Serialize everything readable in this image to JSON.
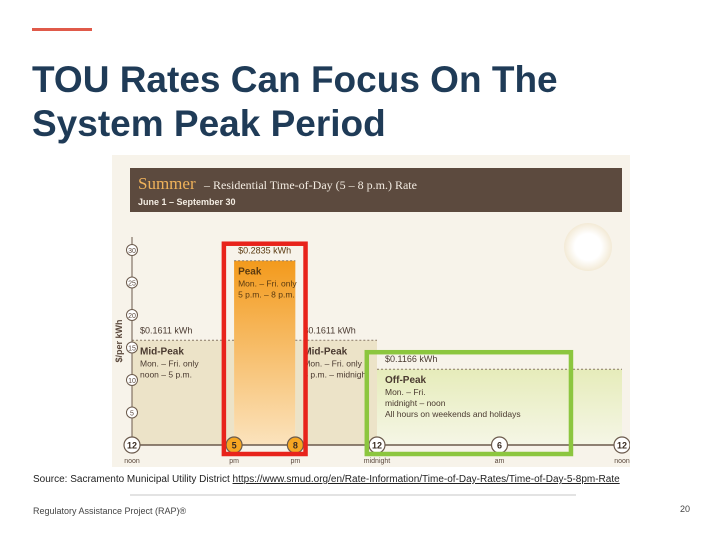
{
  "slide": {
    "title_line1": "TOU Rates Can Focus On The",
    "title_line2": "System Peak Period",
    "source_prefix": "Source: Sacramento Municipal Utility District ",
    "source_url": "https://www.smud.org/en/Rate-Information/Time-of-Day-Rates/Time-of-Day-5-8pm-Rate",
    "footer": "Regulatory Assistance Project (RAP)®",
    "page_number": "20"
  },
  "chart_data": {
    "type": "bar",
    "title": "Summer",
    "subtitle": "– Residential Time-of-Day (5 – 8 p.m.) Rate",
    "date_range": "June 1 – September 30",
    "ylabel": "$/per kWh",
    "y_ticks": [
      5,
      10,
      15,
      20,
      25,
      30
    ],
    "ylim": [
      0,
      32
    ],
    "x_start": 12,
    "x_end": 36,
    "x_ticks": [
      {
        "x": 12,
        "label": "12",
        "sub": "noon"
      },
      {
        "x": 17,
        "label": "5",
        "sub": "pm"
      },
      {
        "x": 20,
        "label": "8",
        "sub": "pm"
      },
      {
        "x": 24,
        "label": "12",
        "sub": "midnight"
      },
      {
        "x": 30,
        "label": "6",
        "sub": "am"
      },
      {
        "x": 36,
        "label": "12",
        "sub": "noon"
      }
    ],
    "segments": [
      {
        "name": "Mid-Peak",
        "start": 12,
        "end": 17,
        "value": 16.11,
        "price": "$0.1611 kWh",
        "line1": "Mon. – Fri. only",
        "line2": "noon – 5 p.m.",
        "line3": "",
        "color": "#ece3c8"
      },
      {
        "name": "Peak",
        "start": 17,
        "end": 20,
        "value": 28.35,
        "price": "$0.2835 kWh",
        "line1": "Mon. – Fri. only",
        "line2": "5 p.m. – 8 p.m.",
        "line3": "",
        "color": "#f5a623"
      },
      {
        "name": "Mid-Peak",
        "start": 20,
        "end": 24,
        "value": 16.11,
        "price": "$0.1611 kWh",
        "line1": "Mon. – Fri. only",
        "line2": "8 p.m. – midnight",
        "line3": "",
        "color": "#ece3c8"
      },
      {
        "name": "Off-Peak",
        "start": 24,
        "end": 36,
        "value": 11.66,
        "price": "$0.1166 kWh",
        "line1": "Mon. – Fri.",
        "line2": "midnight – noon",
        "line3": "All hours on weekends and holidays",
        "color": "#e8eec4"
      }
    ],
    "highlights": [
      {
        "start": 16.5,
        "end": 20.5,
        "color": "#e8231b",
        "covers": "Peak"
      },
      {
        "start": 23.5,
        "end": 33.5,
        "color": "#8cc63f",
        "covers": "Off-Peak"
      }
    ]
  }
}
